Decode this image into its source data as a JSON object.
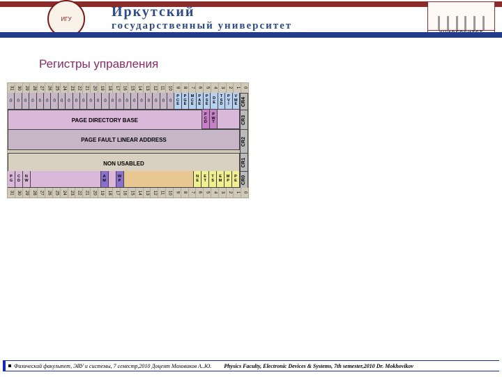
{
  "header": {
    "brand_color": "#8b2c2c",
    "band_blue": "#233c8a",
    "title_color": "#2f4a8a",
    "title1": "Иркутский",
    "title2": "государственный университет",
    "right_label": "УНИВЕРСИТЕТ",
    "emblem_text": "ИГУ"
  },
  "slide": {
    "title": "Регистры управления",
    "title_color": "#8a2a6a"
  },
  "diagram": {
    "bg": "#d0c8b8",
    "bits_top": [
      "31",
      "30",
      "29",
      "28",
      "27",
      "26",
      "25",
      "24",
      "23",
      "22",
      "21",
      "20",
      "19",
      "18",
      "17",
      "16",
      "15",
      "14",
      "13",
      "12",
      "11",
      "10",
      "9",
      "8",
      "7",
      "6",
      "5",
      "4",
      "3",
      "2",
      "1",
      "0"
    ],
    "bits_bottom": [
      "31",
      "30",
      "29",
      "28",
      "27",
      "26",
      "25",
      "24",
      "23",
      "22",
      "21",
      "20",
      "19",
      "18",
      "17",
      "16",
      "15",
      "14",
      "13",
      "12",
      "11",
      "10",
      "9",
      "8",
      "7",
      "6",
      "5",
      "4",
      "3",
      "2",
      "1",
      "0"
    ],
    "cr4": {
      "label": "CR4",
      "bg": "#c7b6c7",
      "cells": [
        {
          "t": "0"
        },
        {
          "t": "0"
        },
        {
          "t": "0"
        },
        {
          "t": "0"
        },
        {
          "t": "0"
        },
        {
          "t": "0"
        },
        {
          "t": "0"
        },
        {
          "t": "0"
        },
        {
          "t": "0"
        },
        {
          "t": "0"
        },
        {
          "t": "0"
        },
        {
          "t": "0"
        },
        {
          "t": "0"
        },
        {
          "t": "0"
        },
        {
          "t": "0"
        },
        {
          "t": "0"
        },
        {
          "t": "0"
        },
        {
          "t": "0"
        },
        {
          "t": "0"
        },
        {
          "t": "0"
        },
        {
          "t": "0"
        },
        {
          "t": "0"
        },
        {
          "t": "0"
        },
        {
          "v": [
            "P",
            "C",
            "E"
          ],
          "c": "#b8d0f0"
        },
        {
          "v": [
            "P",
            "G",
            "E"
          ],
          "c": "#b8d0f0"
        },
        {
          "v": [
            "M",
            "C",
            "E"
          ],
          "c": "#b8d0f0"
        },
        {
          "v": [
            "P",
            "A",
            "E"
          ],
          "c": "#b8d0f0"
        },
        {
          "v": [
            "P",
            "S",
            "E"
          ],
          "c": "#b8d0f0"
        },
        {
          "v": [
            "D",
            "E"
          ],
          "c": "#b8d0f0"
        },
        {
          "v": [
            "T",
            "S",
            "D"
          ],
          "c": "#b8d0f0"
        },
        {
          "v": [
            "P",
            "V",
            "I"
          ],
          "c": "#b8d0f0"
        },
        {
          "v": [
            "V",
            "M",
            "E"
          ],
          "c": "#b8d0f0"
        }
      ]
    },
    "cr3": {
      "label": "CR3",
      "bg": "#d9b8d9",
      "main_text": "PAGE DIRECTORY BASE",
      "tail": [
        {
          "v": [
            "P",
            "C",
            "D"
          ],
          "c": "#c77fc7"
        },
        {
          "v": [
            "P",
            "W",
            "T"
          ],
          "c": "#c77fc7"
        }
      ],
      "tail_span_empty": 3
    },
    "cr2": {
      "label": "CR2",
      "bg": "#c7b6c7",
      "text": "PAGE FAULT LINEAR ADDRESS"
    },
    "cr1": {
      "label": "CR1",
      "bg": "#d8d0c0",
      "text": "NON USABLED"
    },
    "cr0": {
      "label": "CR0",
      "bg_left": "#d9b8d9",
      "bg_mid": "#e8c890",
      "cells": [
        {
          "v": [
            "P",
            "G"
          ],
          "c": "#d9b8d9"
        },
        {
          "v": [
            "C",
            "D"
          ],
          "c": "#d9b8d9"
        },
        {
          "v": [
            "N",
            "W"
          ],
          "c": "#d9b8d9"
        },
        {
          "t": "",
          "c": "#d9b8d9",
          "span": 10
        },
        {
          "v": [
            "A",
            "M"
          ],
          "c": "#8a6fcf"
        },
        {
          "t": "",
          "c": "#d9b8d9"
        },
        {
          "v": [
            "W",
            "P"
          ],
          "c": "#8a6fcf"
        },
        {
          "t": "",
          "c": "#e8c890",
          "span": 10
        },
        {
          "v": [
            "N",
            "E"
          ],
          "c": "#f0f090"
        },
        {
          "v": [
            "E",
            "T"
          ],
          "c": "#f0f090"
        },
        {
          "v": [
            "T",
            "S"
          ],
          "c": "#f0f090"
        },
        {
          "v": [
            "E",
            "M"
          ],
          "c": "#f0f090"
        },
        {
          "v": [
            "M",
            "P"
          ],
          "c": "#f0f090"
        },
        {
          "v": [
            "P",
            "E"
          ],
          "c": "#f0f090"
        }
      ]
    }
  },
  "footer": {
    "bg": "#1a2ab8",
    "text_left": "Физический факультет, ЭВУ и системы, 7 семестр,2010 Доцент Моховиков А..Ю.",
    "text_right": "Physics Faculty, Electronic Devices & Systems, 7th semester,2010   Dr. Mokhovikov"
  }
}
